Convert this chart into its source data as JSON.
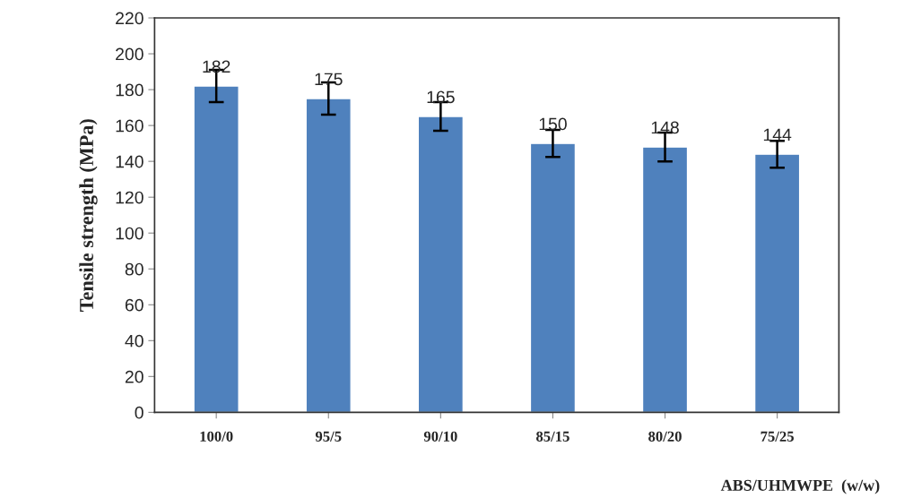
{
  "chart_data": {
    "type": "bar",
    "categories": [
      "100/0",
      "95/5",
      "90/10",
      "85/15",
      "80/20",
      "75/25"
    ],
    "values": [
      182,
      175,
      165,
      150,
      148,
      144
    ],
    "errors": [
      9,
      9,
      8,
      7.5,
      8,
      7.5
    ],
    "color": "#4f81bd",
    "data_labels": true,
    "ylabel": "Tensile strength (MPa)",
    "xlabel": "ABS/UHMWPE  (w/w)",
    "ylim": [
      0,
      220
    ],
    "yticks": [
      0,
      20,
      40,
      60,
      80,
      100,
      120,
      140,
      160,
      180,
      200,
      220
    ],
    "grid": false,
    "legend": false
  }
}
